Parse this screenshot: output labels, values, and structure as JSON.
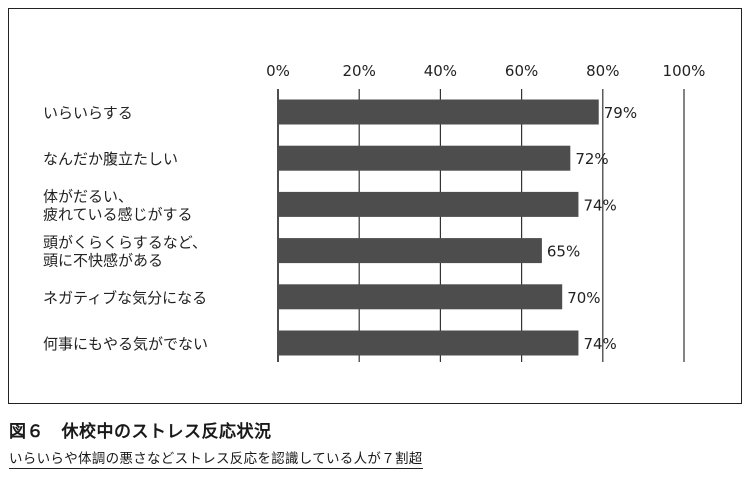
{
  "chart_data": {
    "type": "bar",
    "orientation": "horizontal",
    "categories": [
      [
        "いらいらする"
      ],
      [
        "なんだか腹立たしい"
      ],
      [
        "体がだるい、",
        "疲れている感じがする"
      ],
      [
        "頭がくらくらするなど、",
        "頭に不快感がある"
      ],
      [
        "ネガティブな気分になる"
      ],
      [
        "何事にもやる気がでない"
      ]
    ],
    "values": [
      79,
      72,
      74,
      65,
      70,
      74
    ],
    "value_labels": [
      "79%",
      "72%",
      "74%",
      "65%",
      "70%",
      "74%"
    ],
    "xaxis_ticks": [
      "0%",
      "20%",
      "40%",
      "60%",
      "80%",
      "100%"
    ],
    "xlim": [
      0,
      100
    ],
    "xaxis_position": "top",
    "grid": true,
    "bar_color": "#4d4d4d",
    "title": "",
    "xlabel": "",
    "ylabel": ""
  },
  "caption": {
    "title": "図６　休校中のストレス反応状況",
    "subtitle": "いらいらや体調の悪さなどストレス反応を認識している人が７割超"
  }
}
